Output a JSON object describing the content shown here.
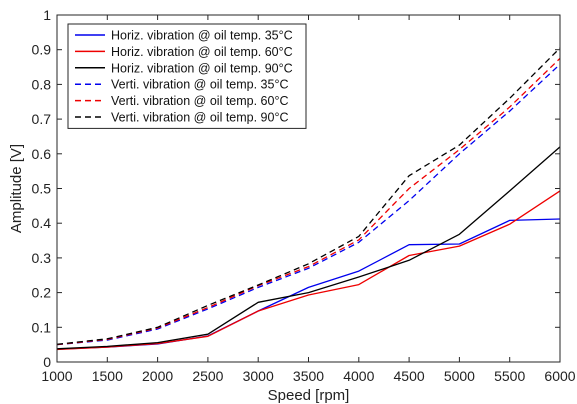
{
  "chart_data": {
    "type": "line",
    "xlabel": "Speed [rpm]",
    "ylabel": "Amplitude [V]",
    "xlim": [
      1000,
      6000
    ],
    "ylim": [
      0,
      1
    ],
    "xticks": [
      1000,
      1500,
      2000,
      2500,
      3000,
      3500,
      4000,
      4500,
      5000,
      5500,
      6000
    ],
    "yticks": [
      0,
      0.1,
      0.2,
      0.3,
      0.4,
      0.5,
      0.6,
      0.7,
      0.8,
      0.9,
      1
    ],
    "ytick_labels": [
      "0",
      "0.1",
      "0.2",
      "0.3",
      "0.4",
      "0.5",
      "0.6",
      "0.7",
      "0.8",
      "0.9",
      "1"
    ],
    "grid": false,
    "legend_position": "top-left",
    "x": [
      1000,
      1500,
      2000,
      2500,
      3000,
      3500,
      4000,
      4500,
      5000,
      5500,
      6000
    ],
    "series": [
      {
        "name": "Horiz. vibration @ oil temp. 35°C",
        "color": "#0000ee",
        "dash": "solid",
        "values": [
          0.037,
          0.043,
          0.052,
          0.075,
          0.147,
          0.215,
          0.262,
          0.338,
          0.34,
          0.408,
          0.412
        ]
      },
      {
        "name": "Horiz. vibration @ oil temp. 60°C",
        "color": "#ee0000",
        "dash": "solid",
        "values": [
          0.036,
          0.043,
          0.053,
          0.074,
          0.147,
          0.193,
          0.223,
          0.307,
          0.334,
          0.397,
          0.493
        ]
      },
      {
        "name": "Horiz. vibration @ oil temp. 90°C",
        "color": "#000000",
        "dash": "solid",
        "values": [
          0.038,
          0.045,
          0.056,
          0.08,
          0.172,
          0.2,
          0.245,
          0.293,
          0.368,
          0.493,
          0.62
        ]
      },
      {
        "name": "Verti. vibration @ oil temp. 35°C",
        "color": "#0000ee",
        "dash": "dashed",
        "values": [
          0.05,
          0.063,
          0.095,
          0.153,
          0.215,
          0.27,
          0.345,
          0.465,
          0.6,
          0.723,
          0.858
        ]
      },
      {
        "name": "Verti. vibration @ oil temp. 60°C",
        "color": "#ee0000",
        "dash": "dashed",
        "values": [
          0.05,
          0.065,
          0.098,
          0.157,
          0.22,
          0.275,
          0.352,
          0.5,
          0.612,
          0.735,
          0.875
        ]
      },
      {
        "name": "Verti. vibration @ oil temp. 90°C",
        "color": "#000000",
        "dash": "dashed",
        "values": [
          0.051,
          0.067,
          0.1,
          0.163,
          0.222,
          0.283,
          0.362,
          0.537,
          0.625,
          0.76,
          0.905
        ]
      }
    ]
  }
}
